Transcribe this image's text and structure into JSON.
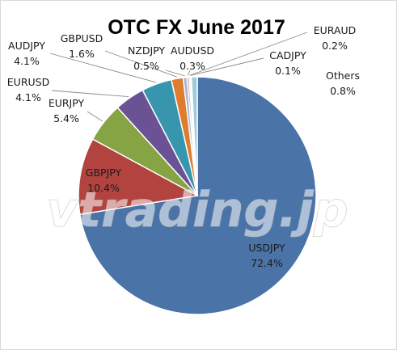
{
  "chart_data": {
    "type": "pie",
    "title": "OTC FX June 2017",
    "unit": "%",
    "slices": [
      {
        "label": "USDJPY",
        "value": 72.4,
        "color": "#4a73a8"
      },
      {
        "label": "GBPJPY",
        "value": 10.4,
        "color": "#b3433f"
      },
      {
        "label": "EURJPY",
        "value": 5.4,
        "color": "#86a444"
      },
      {
        "label": "EURUSD",
        "value": 4.1,
        "color": "#6b5294"
      },
      {
        "label": "AUDJPY",
        "value": 4.1,
        "color": "#3795ae"
      },
      {
        "label": "GBPUSD",
        "value": 1.6,
        "color": "#e07c2e"
      },
      {
        "label": "NZDJPY",
        "value": 0.5,
        "color": "#9fb3d8"
      },
      {
        "label": "AUDUSD",
        "value": 0.3,
        "color": "#c9a2a0"
      },
      {
        "label": "EURAUD",
        "value": 0.2,
        "color": "#c5d69c"
      },
      {
        "label": "CADJPY",
        "value": 0.1,
        "color": "#b2a7c8"
      },
      {
        "label": "Others",
        "value": 0.8,
        "color": "#9ccbdb"
      }
    ],
    "legend": "none"
  },
  "watermark": "vtrading.jp"
}
